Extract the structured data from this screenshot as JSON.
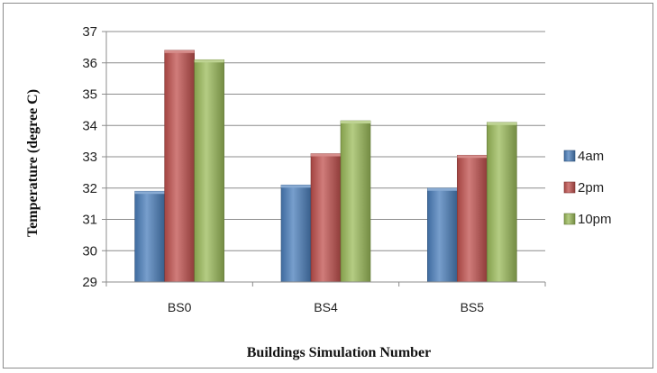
{
  "chart_data": {
    "type": "bar",
    "title": "",
    "xlabel": "Buildings Simulation Number",
    "ylabel": "Temperature (degree C)",
    "categories": [
      "BS0",
      "BS4",
      "BS5"
    ],
    "series": [
      {
        "name": "4am",
        "values": [
          31.9,
          32.1,
          32.0
        ],
        "color": "#4a7ebb"
      },
      {
        "name": "2pm",
        "values": [
          36.4,
          33.1,
          33.05
        ],
        "color": "#c0504d"
      },
      {
        "name": "10pm",
        "values": [
          36.1,
          34.15,
          34.1
        ],
        "color": "#9bbb59"
      }
    ],
    "ylim": [
      29,
      37
    ],
    "yticks": [
      "29",
      "30",
      "31",
      "32",
      "33",
      "34",
      "35",
      "36",
      "37"
    ],
    "grid": true,
    "legend_position": "right"
  }
}
